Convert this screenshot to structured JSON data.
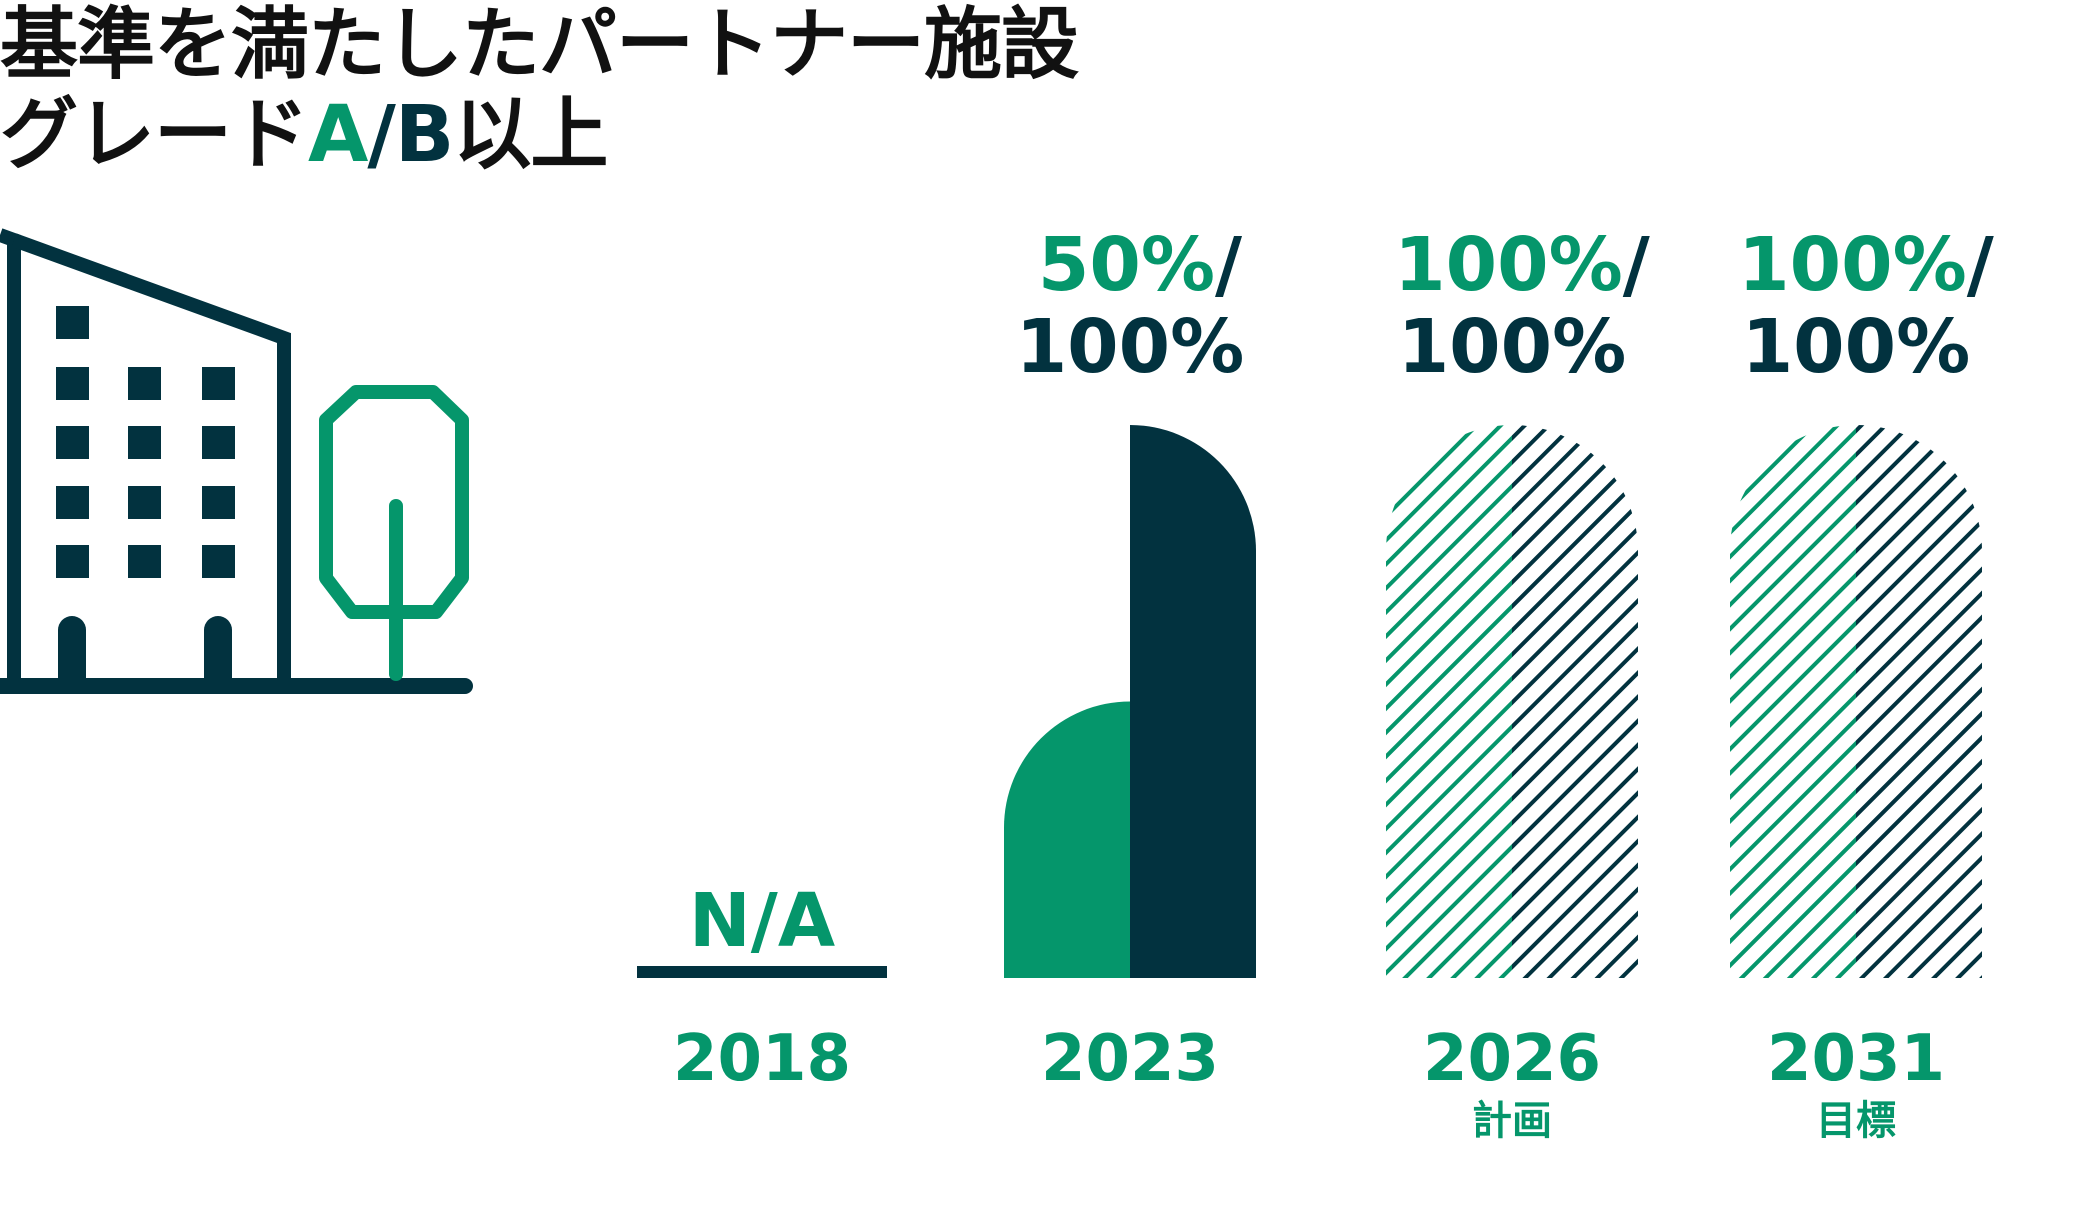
{
  "title": {
    "line1": "基準を満たしたパートナー施設",
    "line2_prefix": "グレード",
    "line2_a": "A",
    "line2_sep": "/",
    "line2_b": "B",
    "line2_suffix": "以上"
  },
  "colors": {
    "green": "#05966b",
    "navy": "#02323f",
    "text": "#111111"
  },
  "icons": [
    "building-icon",
    "tree-icon"
  ],
  "chart_data": {
    "type": "bar",
    "categories": [
      "2018",
      "2023",
      "2026",
      "2031"
    ],
    "category_sublabels": [
      "",
      "",
      "計画",
      "目標"
    ],
    "series": [
      {
        "name": "A",
        "values": [
          null,
          50,
          100,
          100
        ]
      },
      {
        "name": "B",
        "values": [
          null,
          100,
          100,
          100
        ]
      }
    ],
    "value_labels": [
      {
        "line1": "N/A",
        "line2": ""
      },
      {
        "line1_a": "50%",
        "line1_sep": "/",
        "line2": "100%"
      },
      {
        "line1_a": "100%",
        "line1_sep": "/",
        "line2": "100%"
      },
      {
        "line1_a": "100%",
        "line1_sep": "/",
        "line2": "100%"
      }
    ],
    "styles": [
      "none",
      "solid",
      "hatched",
      "hatched"
    ],
    "ylim": [
      0,
      100
    ],
    "unit": "%"
  }
}
